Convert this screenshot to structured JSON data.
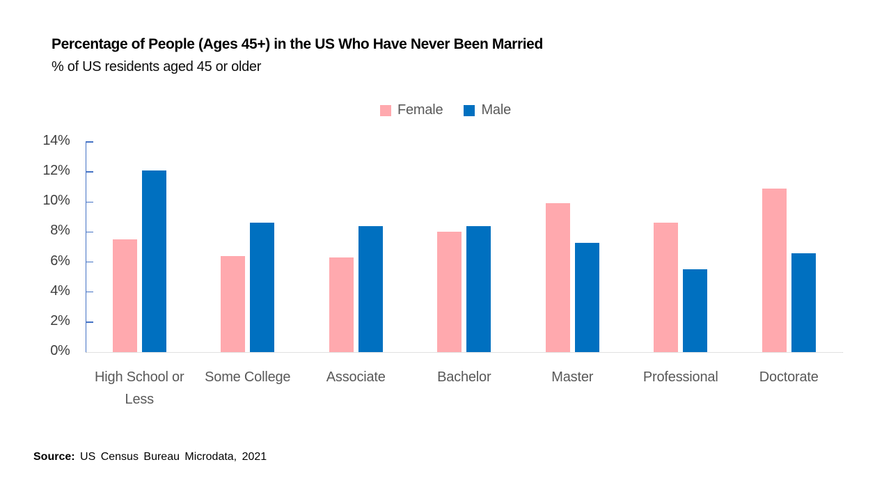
{
  "header": {
    "title": "Percentage of People (Ages 45+) in the US Who Have Never Been Married",
    "subtitle": "% of US residents aged 45 or older"
  },
  "legend": {
    "items": [
      {
        "label": "Female",
        "color": "#FFA9AE"
      },
      {
        "label": "Male",
        "color": "#0070C0"
      }
    ]
  },
  "source": {
    "prefix": "Source:",
    "text": " US Census Bureau Microdata, 2021"
  },
  "chart_data": {
    "type": "bar",
    "title": "Percentage of People (Ages 45+) in the US Who Have Never Been Married",
    "subtitle": "% of US residents aged 45 or older",
    "categories": [
      "High School or Less",
      "Some College",
      "Associate",
      "Bachelor",
      "Master",
      "Professional",
      "Doctorate"
    ],
    "series": [
      {
        "name": "Female",
        "color": "#FFA9AE",
        "values": [
          7.5,
          6.4,
          6.3,
          8.0,
          9.9,
          8.6,
          10.9
        ]
      },
      {
        "name": "Male",
        "color": "#0070C0",
        "values": [
          12.1,
          8.6,
          8.4,
          8.4,
          7.3,
          5.5,
          6.6
        ]
      }
    ],
    "ylabel": "",
    "xlabel": "",
    "ylim": [
      0,
      14
    ],
    "y_tick_step": 2,
    "y_tick_labels": [
      "0%",
      "2%",
      "4%",
      "6%",
      "8%",
      "10%",
      "12%",
      "14%"
    ],
    "y_unit": "%",
    "grid": false,
    "legend_position": "top-center",
    "colors": {
      "axis": "#4472C4",
      "baseline": "#C3C3C3",
      "tick_label": "#404040",
      "category_label": "#595959",
      "legend_label": "#595959",
      "title": "#000000"
    }
  }
}
